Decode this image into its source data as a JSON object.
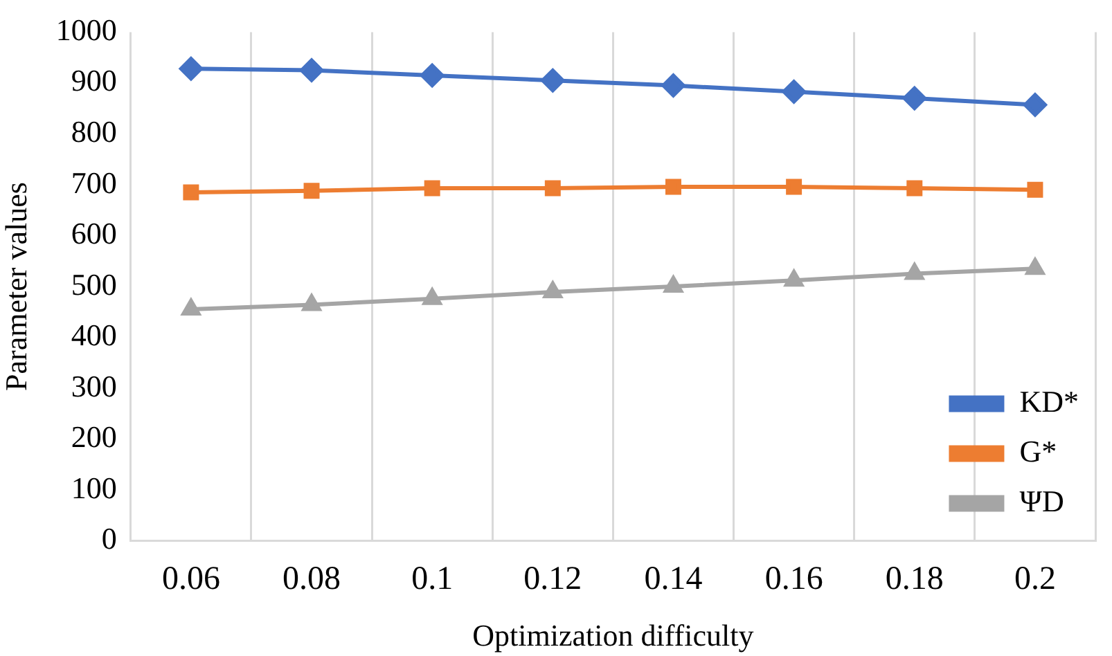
{
  "chart_data": {
    "type": "line",
    "xlabel": "Optimization difficulty",
    "ylabel": "Parameter values",
    "categories": [
      "0.06",
      "0.08",
      "0.1",
      "0.12",
      "0.14",
      "0.16",
      "0.18",
      "0.2"
    ],
    "ylim": [
      0,
      1000
    ],
    "yticks": [
      0,
      100,
      200,
      300,
      400,
      500,
      600,
      700,
      800,
      900,
      1000
    ],
    "grid": "x",
    "legend": "bottom right",
    "line_style": "solid",
    "series": [
      {
        "name": "KD*",
        "color": "#4472c4",
        "marker": "diamond",
        "values": [
          928,
          925,
          915,
          905,
          895,
          883,
          870,
          857
        ]
      },
      {
        "name": "G*",
        "color": "#ed7d31",
        "marker": "square",
        "values": [
          685,
          688,
          693,
          693,
          696,
          696,
          693,
          690
        ]
      },
      {
        "name": "ΨD",
        "color": "#a5a5a5",
        "marker": "triangle",
        "values": [
          455,
          464,
          476,
          489,
          500,
          512,
          525,
          535
        ]
      }
    ]
  }
}
